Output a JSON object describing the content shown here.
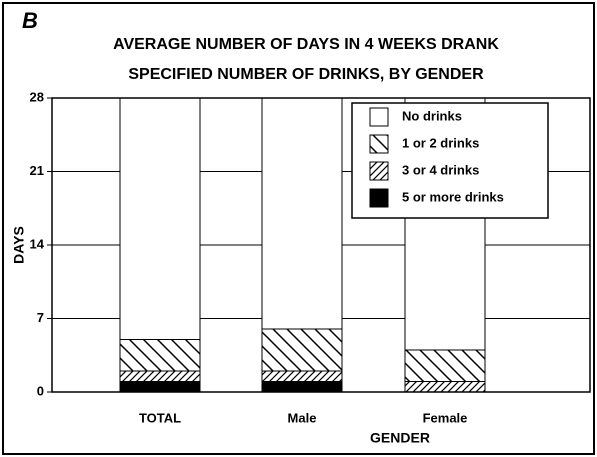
{
  "chart_data": {
    "type": "stacked_bar",
    "panel_label": "B",
    "title": [
      "AVERAGE NUMBER OF DAYS IN 4 WEEKS DRANK",
      "SPECIFIED NUMBER OF DRINKS, BY GENDER"
    ],
    "x_label": "GENDER",
    "y_label": "DAYS",
    "categories": [
      "TOTAL",
      "Male",
      "Female"
    ],
    "series": [
      {
        "name": "No drinks",
        "color": "#ffffff",
        "values": [
          23,
          22,
          24
        ]
      },
      {
        "name": "1 or 2 drinks",
        "color": "#ffffff",
        "values": [
          3,
          4,
          3
        ]
      },
      {
        "name": "3 or 4 drinks",
        "color": "#ffffff",
        "values": [
          1,
          1,
          1
        ]
      },
      {
        "name": "5 or more drinks",
        "color": "#000000",
        "values": [
          1,
          1,
          0
        ]
      }
    ],
    "ylim": [
      0,
      28
    ],
    "yticks": [
      0,
      7,
      14,
      21,
      28
    ],
    "grid": true,
    "legend": "upper right"
  }
}
